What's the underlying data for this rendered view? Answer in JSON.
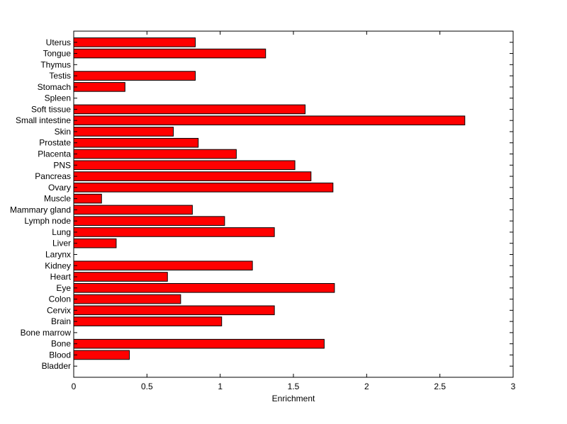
{
  "chart_data": {
    "type": "bar",
    "orientation": "horizontal",
    "title": "",
    "xlabel": "Enrichment",
    "ylabel": "",
    "xlim": [
      0,
      3
    ],
    "xticks": [
      0,
      0.5,
      1,
      1.5,
      2,
      2.5,
      3
    ],
    "xtick_labels": [
      "0",
      "0.5",
      "1",
      "1.5",
      "2",
      "2.5",
      "3"
    ],
    "grid": false,
    "legend": "none",
    "bar_color": "#ff0000",
    "bar_edge_color": "#000000",
    "categories": [
      "Bladder",
      "Blood",
      "Bone",
      "Bone marrow",
      "Brain",
      "Cervix",
      "Colon",
      "Eye",
      "Heart",
      "Kidney",
      "Larynx",
      "Liver",
      "Lung",
      "Lymph node",
      "Mammary gland",
      "Muscle",
      "Ovary",
      "Pancreas",
      "PNS",
      "Placenta",
      "Prostate",
      "Skin",
      "Small intestine",
      "Soft tissue",
      "Spleen",
      "Stomach",
      "Testis",
      "Thymus",
      "Tongue",
      "Uterus"
    ],
    "values": [
      0,
      0.38,
      1.71,
      0,
      1.01,
      1.37,
      0.73,
      1.78,
      0.64,
      1.22,
      0,
      0.29,
      1.37,
      1.03,
      0.81,
      0.19,
      1.77,
      1.62,
      1.51,
      1.11,
      0.85,
      0.68,
      2.67,
      1.58,
      0,
      0.35,
      0.83,
      0,
      1.31,
      0.83
    ]
  }
}
